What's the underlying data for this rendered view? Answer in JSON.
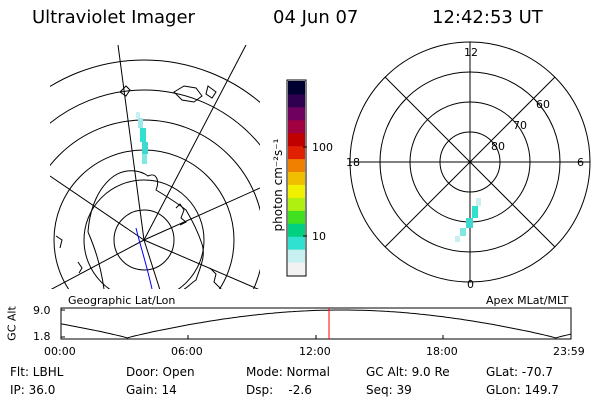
{
  "header": {
    "instrument": "Ultraviolet Imager",
    "date": "04 Jun 07",
    "time": "12:42:53 UT"
  },
  "colorbar": {
    "unit_label": "photon cm⁻²s⁻¹",
    "tick_100": "100",
    "tick_10": "10",
    "colors": [
      "#f2f2f2",
      "#c8f0f0",
      "#30e0d0",
      "#00d080",
      "#40e020",
      "#b0f010",
      "#f0f000",
      "#f0c000",
      "#f08000",
      "#e02000",
      "#c00000",
      "#a00040",
      "#700060",
      "#300050",
      "#000030"
    ]
  },
  "left_map": {
    "label": "Geographic Lat/Lon"
  },
  "right_map": {
    "label": "Apex MLat/MLT",
    "mlt_12": "12",
    "mlt_18": "18",
    "mlt_6": "6",
    "mlt_0": "0",
    "lat_60": "60",
    "lat_70": "70",
    "lat_80": "80"
  },
  "altitude_plot": {
    "ylabel": "GC Alt",
    "tick_high": "9.0",
    "tick_low": "1.8",
    "x_ticks": [
      "00:00",
      "06:00",
      "12:00",
      "18:00",
      "23:59"
    ],
    "cursor_color": "#ff0000"
  },
  "info": {
    "flt": "Flt: LBHL",
    "door": "Door: Open",
    "mode": "Mode: Normal",
    "gcalt": "GC Alt: 9.0 Re",
    "glat": "GLat: -70.7",
    "ip": "IP: 36.0",
    "gain": "Gain: 14",
    "dsp": "Dsp:    -2.6",
    "seq": "Seq: 39",
    "glon": "GLon: 149.7"
  }
}
